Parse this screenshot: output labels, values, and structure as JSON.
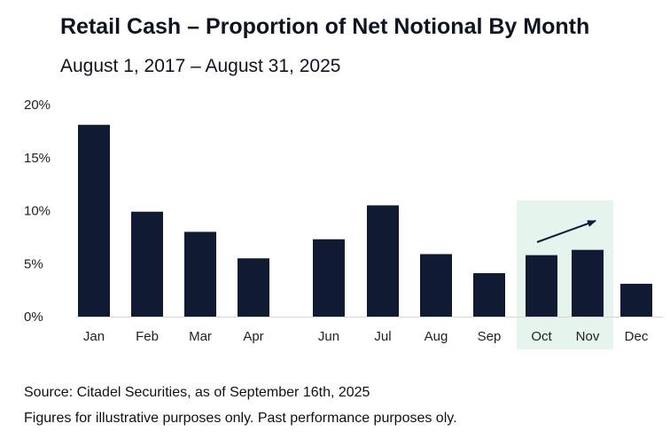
{
  "header": {
    "title": "Retail Cash – Proportion of Net Notional By Month",
    "subtitle": "August 1, 2017 – August 31, 2025"
  },
  "footer": {
    "source": "Source: Citadel Securities, as of September 16th, 2025",
    "disclaimer": "Figures for illustrative purposes only. Past performance purposes oly."
  },
  "colors": {
    "bar": "#111a33",
    "highlight": "#e5f4ec",
    "arrow": "#111a33"
  },
  "chart_data": {
    "type": "bar",
    "title": "Retail Cash – Proportion of Net Notional By Month",
    "subtitle": "August 1, 2017 – August 31, 2025",
    "categories": [
      "Jan",
      "Feb",
      "Mar",
      "Apr",
      "Jun",
      "Jul",
      "Aug",
      "Sep",
      "Oct",
      "Nov",
      "Dec"
    ],
    "values": [
      18.1,
      9.9,
      8.0,
      5.5,
      7.3,
      10.5,
      5.9,
      4.1,
      5.8,
      6.3,
      3.1
    ],
    "yticks": [
      "0%",
      "5%",
      "10%",
      "15%",
      "20%"
    ],
    "ylim": [
      0,
      20
    ],
    "xlabel": "",
    "ylabel": "",
    "grid": false,
    "legend": "none",
    "highlight_categories": [
      "Oct",
      "Nov"
    ],
    "annotation": "upward-trend-arrow"
  }
}
